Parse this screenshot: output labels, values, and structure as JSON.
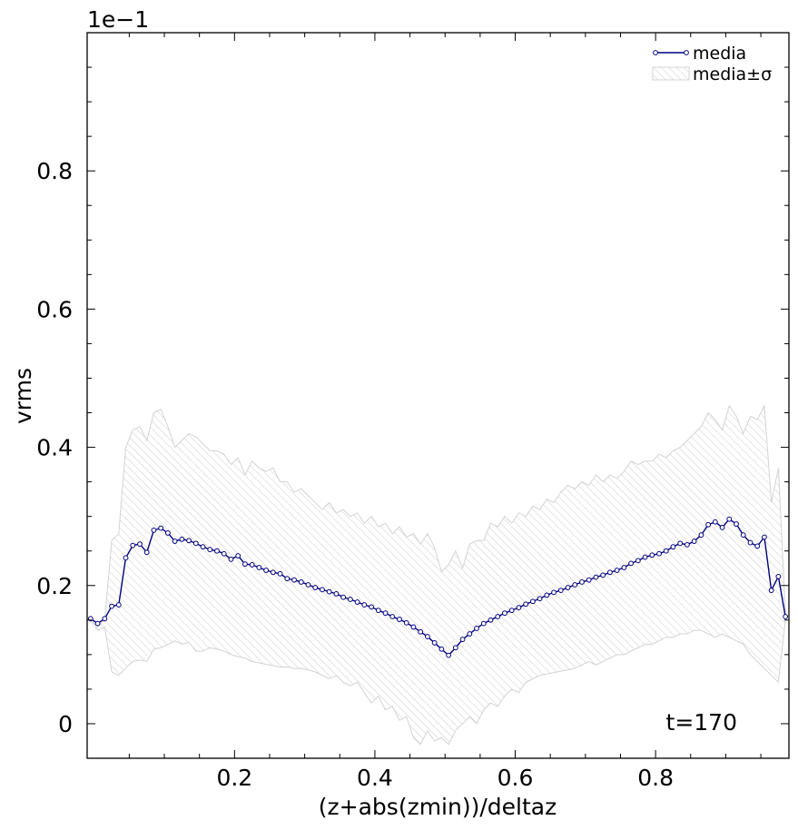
{
  "chart_data": {
    "type": "line",
    "offset_label": "1e−1",
    "xlabel": "(z+abs(zmin))/deltaz",
    "ylabel": "vrms",
    "annotation": "t=170",
    "legend": "upper right",
    "xlim": [
      -0.01,
      0.99
    ],
    "ylim": [
      -0.05,
      1.0
    ],
    "xticks": [
      0.2,
      0.4,
      0.6,
      0.8
    ],
    "yticks": [
      0.0,
      0.2,
      0.4,
      0.6,
      0.8
    ],
    "xminorticks": [
      0.05,
      0.1,
      0.15,
      0.25,
      0.3,
      0.35,
      0.45,
      0.5,
      0.55,
      0.65,
      0.7,
      0.75,
      0.85,
      0.9,
      0.95
    ],
    "yminorticks": [
      0.05,
      0.1,
      0.15,
      0.25,
      0.3,
      0.35,
      0.45,
      0.5,
      0.55,
      0.65,
      0.7,
      0.75,
      0.85,
      0.9,
      0.95
    ],
    "x": [
      -0.005,
      0.005,
      0.015,
      0.025,
      0.035,
      0.045,
      0.055,
      0.065,
      0.075,
      0.085,
      0.095,
      0.105,
      0.115,
      0.125,
      0.135,
      0.145,
      0.155,
      0.165,
      0.175,
      0.185,
      0.195,
      0.205,
      0.215,
      0.225,
      0.235,
      0.245,
      0.255,
      0.265,
      0.275,
      0.285,
      0.295,
      0.305,
      0.315,
      0.325,
      0.335,
      0.345,
      0.355,
      0.365,
      0.375,
      0.385,
      0.395,
      0.405,
      0.415,
      0.425,
      0.435,
      0.445,
      0.455,
      0.465,
      0.475,
      0.485,
      0.495,
      0.505,
      0.515,
      0.525,
      0.535,
      0.545,
      0.555,
      0.565,
      0.575,
      0.585,
      0.595,
      0.605,
      0.615,
      0.625,
      0.635,
      0.645,
      0.655,
      0.665,
      0.675,
      0.685,
      0.695,
      0.705,
      0.715,
      0.725,
      0.735,
      0.745,
      0.755,
      0.765,
      0.775,
      0.785,
      0.795,
      0.805,
      0.815,
      0.825,
      0.835,
      0.845,
      0.855,
      0.865,
      0.875,
      0.885,
      0.895,
      0.905,
      0.915,
      0.925,
      0.935,
      0.945,
      0.955,
      0.965,
      0.975,
      0.985
    ],
    "series": [
      {
        "name": "media",
        "color": "#000080",
        "values": [
          0.152,
          0.145,
          0.152,
          0.17,
          0.172,
          0.24,
          0.258,
          0.26,
          0.248,
          0.28,
          0.283,
          0.276,
          0.264,
          0.267,
          0.265,
          0.261,
          0.256,
          0.252,
          0.25,
          0.246,
          0.238,
          0.243,
          0.231,
          0.23,
          0.226,
          0.222,
          0.219,
          0.217,
          0.21,
          0.208,
          0.205,
          0.201,
          0.197,
          0.194,
          0.191,
          0.188,
          0.183,
          0.18,
          0.176,
          0.172,
          0.169,
          0.164,
          0.16,
          0.155,
          0.151,
          0.146,
          0.14,
          0.133,
          0.126,
          0.117,
          0.108,
          0.099,
          0.11,
          0.122,
          0.13,
          0.138,
          0.145,
          0.15,
          0.155,
          0.16,
          0.164,
          0.168,
          0.173,
          0.177,
          0.181,
          0.186,
          0.19,
          0.193,
          0.197,
          0.201,
          0.205,
          0.208,
          0.212,
          0.215,
          0.219,
          0.222,
          0.226,
          0.232,
          0.236,
          0.241,
          0.244,
          0.246,
          0.25,
          0.256,
          0.261,
          0.259,
          0.264,
          0.273,
          0.288,
          0.292,
          0.284,
          0.296,
          0.289,
          0.273,
          0.262,
          0.257,
          0.27,
          0.193,
          0.213,
          0.155
        ]
      },
      {
        "name": "media±σ",
        "color": "#d3d3d3",
        "high": [
          0.15,
          0.14,
          0.15,
          0.265,
          0.275,
          0.4,
          0.425,
          0.43,
          0.41,
          0.45,
          0.455,
          0.43,
          0.4,
          0.41,
          0.42,
          0.415,
          0.405,
          0.395,
          0.395,
          0.39,
          0.375,
          0.385,
          0.36,
          0.38,
          0.37,
          0.365,
          0.37,
          0.35,
          0.35,
          0.335,
          0.34,
          0.33,
          0.32,
          0.31,
          0.32,
          0.305,
          0.31,
          0.3,
          0.305,
          0.29,
          0.3,
          0.285,
          0.29,
          0.275,
          0.285,
          0.27,
          0.275,
          0.26,
          0.275,
          0.255,
          0.22,
          0.23,
          0.25,
          0.225,
          0.26,
          0.265,
          0.265,
          0.29,
          0.285,
          0.3,
          0.29,
          0.305,
          0.3,
          0.315,
          0.31,
          0.325,
          0.32,
          0.335,
          0.345,
          0.34,
          0.35,
          0.345,
          0.36,
          0.35,
          0.36,
          0.355,
          0.365,
          0.38,
          0.375,
          0.38,
          0.38,
          0.39,
          0.385,
          0.395,
          0.4,
          0.41,
          0.42,
          0.43,
          0.45,
          0.44,
          0.425,
          0.46,
          0.445,
          0.42,
          0.445,
          0.44,
          0.46,
          0.32,
          0.37,
          0.16
        ],
        "low": [
          0.15,
          0.135,
          0.14,
          0.075,
          0.07,
          0.08,
          0.09,
          0.092,
          0.09,
          0.108,
          0.11,
          0.115,
          0.12,
          0.115,
          0.118,
          0.105,
          0.105,
          0.11,
          0.108,
          0.105,
          0.1,
          0.097,
          0.095,
          0.09,
          0.088,
          0.086,
          0.084,
          0.082,
          0.082,
          0.08,
          0.08,
          0.078,
          0.075,
          0.07,
          0.065,
          0.07,
          0.06,
          0.055,
          0.06,
          0.045,
          0.03,
          0.04,
          0.02,
          0.025,
          0.005,
          0.01,
          -0.02,
          -0.03,
          -0.01,
          -0.025,
          -0.02,
          -0.03,
          -0.01,
          0.0,
          0.01,
          0.0,
          0.02,
          0.03,
          0.025,
          0.04,
          0.05,
          0.045,
          0.06,
          0.065,
          0.07,
          0.072,
          0.074,
          0.076,
          0.078,
          0.08,
          0.085,
          0.09,
          0.085,
          0.09,
          0.095,
          0.1,
          0.1,
          0.105,
          0.11,
          0.115,
          0.115,
          0.12,
          0.125,
          0.125,
          0.13,
          0.13,
          0.135,
          0.135,
          0.13,
          0.125,
          0.13,
          0.125,
          0.12,
          0.115,
          0.1,
          0.09,
          0.08,
          0.07,
          0.06,
          0.15
        ]
      }
    ]
  }
}
